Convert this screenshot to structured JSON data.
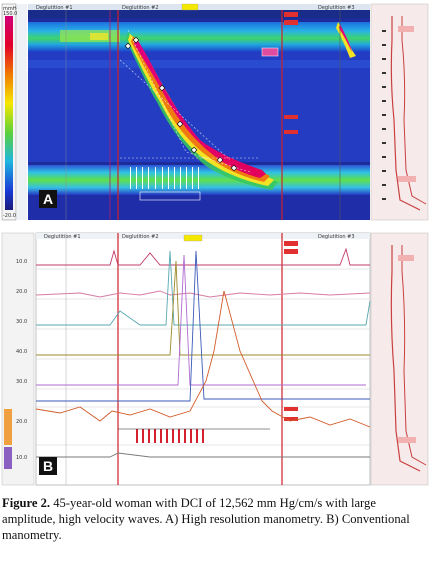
{
  "panel_a": {
    "label": "A",
    "scale_top_label": "mmHg",
    "scale_values": [
      "150.0",
      "-20.0"
    ],
    "markers": [
      "Deglutition #1",
      "Deglutition #2",
      "Deglutition #3"
    ]
  },
  "panel_b": {
    "label": "B",
    "markers": [
      "Deglutition #1",
      "Deglutition #2",
      "Deglutition #3"
    ],
    "channel_values": [
      "10.0",
      "20.0",
      "30.0",
      "40.0",
      "30.0",
      "20.0",
      "10.0"
    ]
  },
  "caption": {
    "figure_label": "Figure 2.",
    "text": "45-year-old woman with DCI of 12,562 mm Hg/cm/s with large amplitude, high velocity waves. A) High resolution manometry. B) Conventional manometry."
  }
}
